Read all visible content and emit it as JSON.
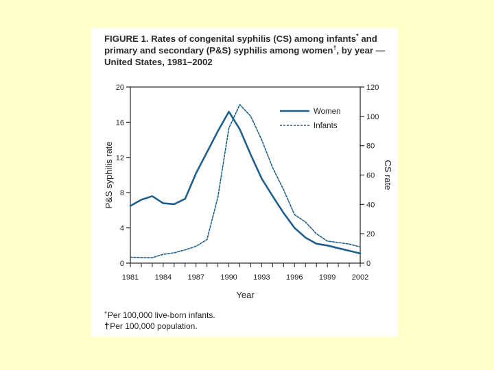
{
  "figure": {
    "label": "FIGURE 1.",
    "title_part1": "Rates of congenital syphilis (CS) among infants",
    "title_mark1": "*",
    "title_part2": "and primary and secondary (P&S) syphilis among women",
    "title_mark2": "†",
    "title_part3": ",",
    "title_part4": "by year — United States, 1981–2002"
  },
  "footnotes": [
    {
      "mark": "*",
      "text": "Per 100,000 live-born infants."
    },
    {
      "mark": "†",
      "text": "Per 100,000 population."
    }
  ],
  "chart_data": {
    "type": "line",
    "xlabel": "Year",
    "ylabel_left": "P&S syphilis rate",
    "ylabel_right": "CS rate",
    "xlim": [
      1981,
      2002
    ],
    "ylim_left": [
      0,
      20
    ],
    "ylim_right": [
      0,
      120
    ],
    "x_ticks": [
      1981,
      1984,
      1987,
      1990,
      1993,
      1996,
      1999,
      2002
    ],
    "y_ticks_left": [
      0,
      4,
      8,
      12,
      16,
      20
    ],
    "y_ticks_right": [
      0,
      20,
      40,
      60,
      80,
      100,
      120
    ],
    "legend_position": "top-right",
    "series": [
      {
        "name": "Women",
        "axis": "left",
        "style": "solid",
        "x": [
          1981,
          1982,
          1983,
          1984,
          1985,
          1986,
          1987,
          1988,
          1989,
          1990,
          1991,
          1992,
          1993,
          1994,
          1995,
          1996,
          1997,
          1998,
          1999,
          2000,
          2001,
          2002
        ],
        "values": [
          6.5,
          7.2,
          7.6,
          6.8,
          6.7,
          7.3,
          10.2,
          12.6,
          15.0,
          17.2,
          15.2,
          12.3,
          9.6,
          7.6,
          5.7,
          4.0,
          2.9,
          2.2,
          2.0,
          1.7,
          1.4,
          1.1
        ]
      },
      {
        "name": "Infants",
        "axis": "right",
        "style": "dashed",
        "x": [
          1981,
          1982,
          1983,
          1984,
          1985,
          1986,
          1987,
          1988,
          1989,
          1990,
          1991,
          1992,
          1993,
          1994,
          1995,
          1996,
          1997,
          1998,
          1999,
          2000,
          2001,
          2002
        ],
        "values": [
          4.0,
          3.8,
          3.7,
          6.0,
          7.0,
          9.0,
          11.5,
          16.0,
          45.0,
          92.0,
          108.0,
          100.0,
          84.0,
          65.0,
          50.0,
          33.0,
          28.0,
          20.0,
          15.0,
          14.0,
          13.0,
          11.0
        ]
      }
    ]
  }
}
